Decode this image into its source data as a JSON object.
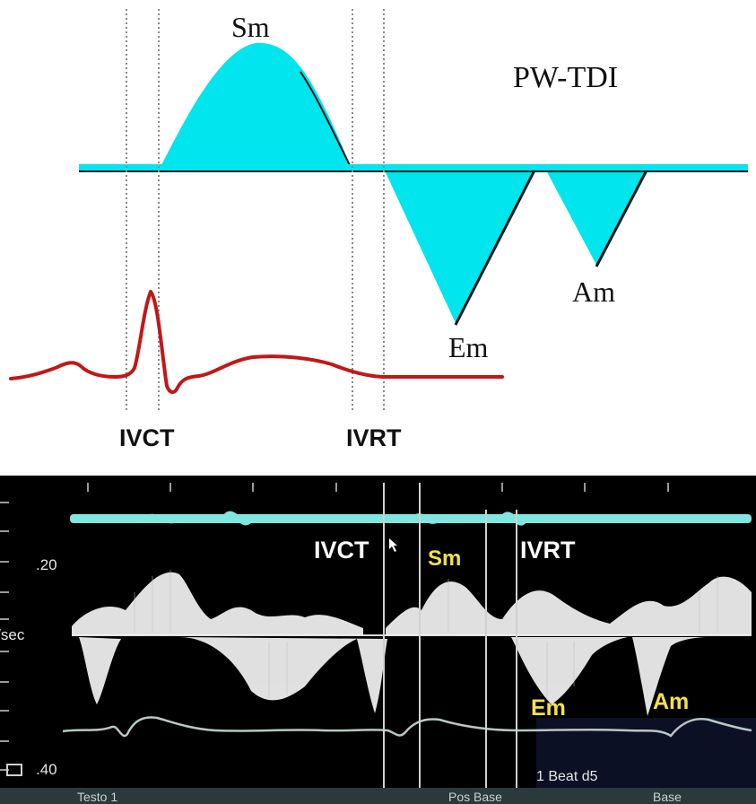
{
  "diagram": {
    "title": "PW-TDI",
    "wave_labels": {
      "sm": "Sm",
      "em": "Em",
      "am": "Am"
    },
    "interval_labels": {
      "ivct": "IVCT",
      "ivrt": "IVRT"
    },
    "colors": {
      "fill": "#00e5ee",
      "ecg": "#c01818",
      "baseline": "#111111"
    }
  },
  "doppler": {
    "axis_labels": {
      "upper": ".20",
      "unit": "m/sec",
      "lower": ".40"
    },
    "overlay_labels": {
      "ivct": "IVCT",
      "ivrt": "IVRT",
      "sm": "Sm",
      "em": "Em",
      "am": "Am"
    },
    "beat_label": "1 Beat d5",
    "footer": {
      "left": "Testo 1",
      "middle": "Pos Base",
      "right": "Base"
    },
    "colors": {
      "background": "#000000",
      "trace": "#7fe6e0",
      "overlay_white": "#ffffff",
      "overlay_yellow": "#f2e24a"
    }
  }
}
